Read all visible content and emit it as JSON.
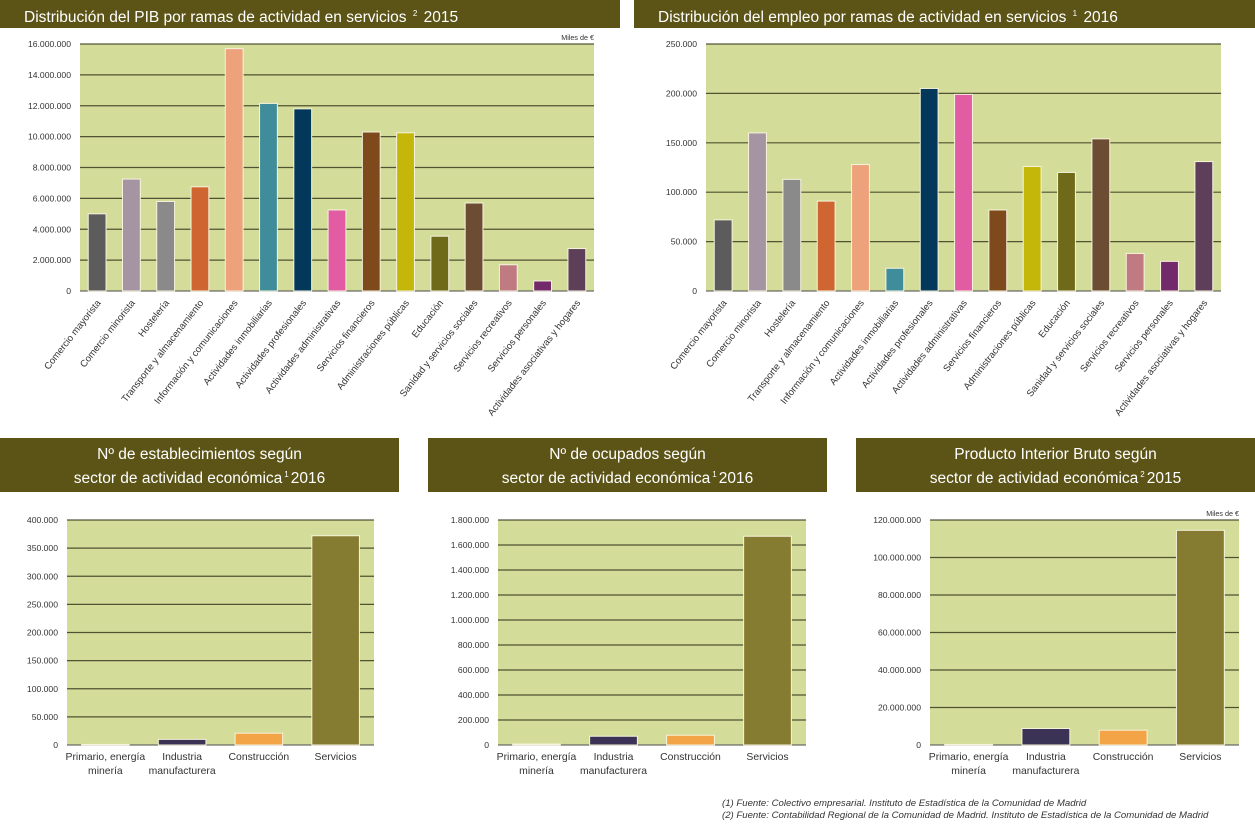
{
  "chart_data": [
    {
      "id": "pib-servicios",
      "type": "bar",
      "title": "Distribución del PIB por ramas de actividad en servicios",
      "title_note": "2",
      "title_year": "2015",
      "unit_label": "Miles de €",
      "ylim": [
        0,
        16000000
      ],
      "yticks": [
        0,
        2000000,
        4000000,
        6000000,
        8000000,
        10000000,
        12000000,
        14000000,
        16000000
      ],
      "ytick_labels": [
        "0",
        "2.000.000",
        "4.000.000",
        "6.000.000",
        "8.000.000",
        "10.000.000",
        "12.000.000",
        "14.000.000",
        "16.000.000"
      ],
      "grid": true,
      "categories": [
        "Comercio mayorista",
        "Comercio minorista",
        "Hostelería",
        "Transporte y almacenamiento",
        "Información y comunicaciones",
        "Actividades inmobiliarias",
        "Actividades profesionales",
        "Actividades administrativas",
        "Servicios financieros",
        "Administraciones públicas",
        "Educación",
        "Sanidad y servicios sociales",
        "Servicios recreativos",
        "Servicios personales",
        "Actividades asociativas y hogares"
      ],
      "values": [
        5000000,
        7250000,
        5800000,
        6750000,
        15700000,
        12150000,
        11800000,
        5250000,
        10300000,
        10250000,
        3550000,
        5700000,
        1700000,
        650000,
        2750000
      ],
      "colors": [
        "#5d5c5c",
        "#a595a3",
        "#8a8a8a",
        "#cf6631",
        "#eda27b",
        "#3f8c9b",
        "#03385a",
        "#e15ca2",
        "#7e4a1b",
        "#c4b70a",
        "#6e6a1a",
        "#6d4c34",
        "#c07a82",
        "#722a6b",
        "#5d3f5a"
      ]
    },
    {
      "id": "empleo-servicios",
      "type": "bar",
      "title": "Distribución del empleo por ramas de actividad en servicios",
      "title_note": "1",
      "title_year": "2016",
      "ylim": [
        0,
        250000
      ],
      "yticks": [
        0,
        50000,
        100000,
        150000,
        200000,
        250000
      ],
      "ytick_labels": [
        "0",
        "50.000",
        "100.000",
        "150.000",
        "200.000",
        "250.000"
      ],
      "grid": true,
      "categories": [
        "Comercio mayorista",
        "Comercio minorista",
        "Hostelería",
        "Transporte y almacenamiento",
        "Información y comunicaciones",
        "Actividades inmobiliarias",
        "Actividades profesionales",
        "Actividades administrativas",
        "Servicios financieros",
        "Administraciones públicas",
        "Educación",
        "Sanidad y servicios sociales",
        "Servicios recreativos",
        "Servicios personales",
        "Actividades asociativas y hogares"
      ],
      "values": [
        72000,
        160000,
        113000,
        91000,
        128000,
        23000,
        205000,
        199000,
        82000,
        126000,
        120000,
        154000,
        38000,
        30000,
        131000
      ],
      "colors": [
        "#5d5c5c",
        "#a595a3",
        "#8a8a8a",
        "#cf6631",
        "#eda27b",
        "#3f8c9b",
        "#03385a",
        "#e15ca2",
        "#7e4a1b",
        "#c4b70a",
        "#6e6a1a",
        "#6d4c34",
        "#c07a82",
        "#722a6b",
        "#5d3f5a"
      ]
    },
    {
      "id": "establecimientos",
      "type": "bar",
      "title_line1": "Nº de establecimientos según",
      "title_line2": "sector de actividad económica",
      "title_note": "1",
      "title_year": "2016",
      "ylim": [
        0,
        400000
      ],
      "yticks": [
        0,
        50000,
        100000,
        150000,
        200000,
        250000,
        300000,
        350000,
        400000
      ],
      "ytick_labels": [
        "0",
        "50.000",
        "100.000",
        "150.000",
        "200.000",
        "250.000",
        "300.000",
        "350.000",
        "400.000"
      ],
      "grid": true,
      "categories": [
        [
          "Primario, energía",
          "minería"
        ],
        [
          "Industria",
          "manufacturera"
        ],
        [
          "Construcción"
        ],
        [
          "Servicios"
        ]
      ],
      "values": [
        1000,
        10000,
        21000,
        372000
      ],
      "colors": [
        "#d3dc99",
        "#3b3355",
        "#f3a446",
        "#857c31"
      ]
    },
    {
      "id": "ocupados",
      "type": "bar",
      "title_line1": "Nº de ocupados según",
      "title_line2": "sector de actividad económica",
      "title_note": "1",
      "title_year": "2016",
      "ylim": [
        0,
        1800000
      ],
      "yticks": [
        0,
        200000,
        400000,
        600000,
        800000,
        1000000,
        1200000,
        1400000,
        1600000,
        1800000
      ],
      "ytick_labels": [
        "0",
        "200.000",
        "400.000",
        "600.000",
        "800.000",
        "1.000.000",
        "1.200.000",
        "1.400.000",
        "1.600.000",
        "1.800.000"
      ],
      "grid": true,
      "categories": [
        [
          "Primario, energía",
          "minería"
        ],
        [
          "Industria",
          "manufacturera"
        ],
        [
          "Construcción"
        ],
        [
          "Servicios"
        ]
      ],
      "values": [
        8000,
        70000,
        78000,
        1670000
      ],
      "colors": [
        "#d3dc99",
        "#3b3355",
        "#f3a446",
        "#857c31"
      ]
    },
    {
      "id": "pib-sector",
      "type": "bar",
      "title_line1": "Producto Interior Bruto según",
      "title_line2": "sector de actividad económica",
      "title_note": "2",
      "title_year": "2015",
      "unit_label": "Miles de €",
      "ylim": [
        0,
        120000000
      ],
      "yticks": [
        0,
        20000000,
        40000000,
        60000000,
        80000000,
        100000000,
        120000000
      ],
      "ytick_labels": [
        "0",
        "20.000.000",
        "40.000.000",
        "60.000.000",
        "80.000.000",
        "100.000.000",
        "120.000.000"
      ],
      "grid": true,
      "categories": [
        [
          "Primario, energía",
          "minería"
        ],
        [
          "Industria",
          "manufacturera"
        ],
        [
          "Construcción"
        ],
        [
          "Servicios"
        ]
      ],
      "values": [
        300000,
        8800000,
        7900000,
        114500000
      ],
      "colors": [
        "#d3dc99",
        "#3b3355",
        "#f3a446",
        "#857c31"
      ]
    }
  ],
  "footnotes": [
    "(1) Fuente: Colectivo empresarial. Instituto de Estadística de la Comunidad de Madrid",
    "(2) Fuente: Contabilidad Regional de la Comunidad de Madrid. Instituto de Estadística de la Comunidad de Madrid"
  ],
  "theme": {
    "header_bg": "#5c5417",
    "plot_bg": "#d3dc99",
    "grid": "#3a3a1e"
  }
}
